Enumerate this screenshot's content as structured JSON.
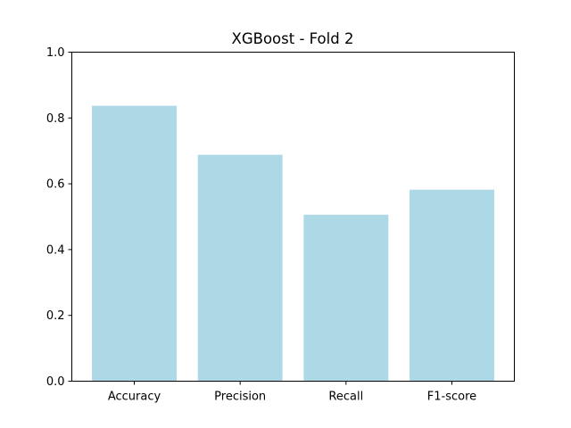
{
  "chart_data": {
    "type": "bar",
    "title": "XGBoost - Fold 2",
    "xlabel": "",
    "ylabel": "",
    "categories": [
      "Accuracy",
      "Precision",
      "Recall",
      "F1-score"
    ],
    "values": [
      0.837,
      0.688,
      0.506,
      0.582
    ],
    "ylim": [
      0,
      1.0
    ],
    "yticks": [
      "0.0",
      "0.2",
      "0.4",
      "0.6",
      "0.8",
      "1.0"
    ],
    "bar_color": "#add8e6",
    "grid": false,
    "legend": "none"
  }
}
